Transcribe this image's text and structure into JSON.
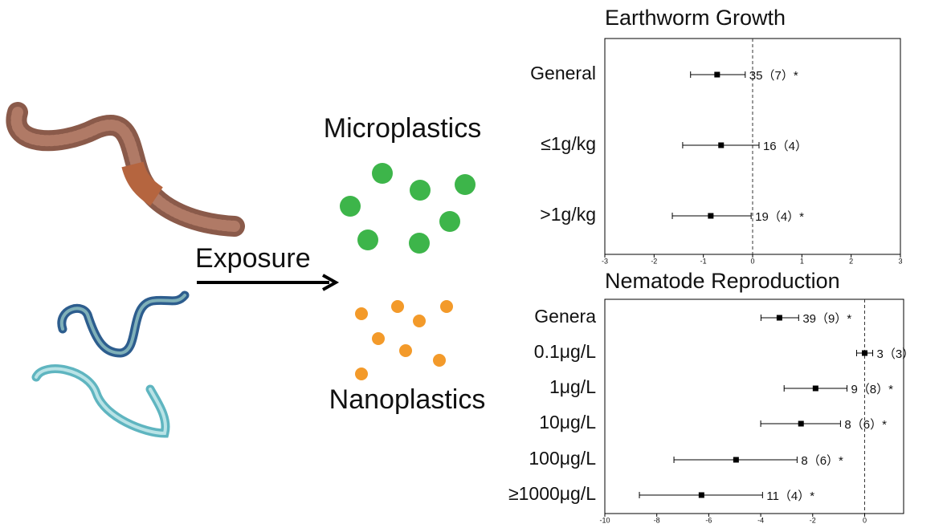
{
  "labels": {
    "exposure": "Exposure",
    "microplastics": "Microplastics",
    "nanoplastics": "Nanoplastics"
  },
  "chart_data": [
    {
      "type": "forest",
      "title": "Earthworm Growth",
      "categories": [
        "General",
        "≤1g/kg",
        ">1g/kg"
      ],
      "values": [
        -0.72,
        -0.64,
        -0.85
      ],
      "lower": [
        -1.26,
        -1.42,
        -1.63
      ],
      "upper": [
        -0.15,
        0.13,
        -0.03
      ],
      "annotations": [
        "35（7）*",
        "16（4）",
        "19（4）*"
      ],
      "xlim": [
        -3,
        3
      ],
      "xticks": [
        -3,
        -2,
        -1,
        0,
        1,
        2,
        3
      ],
      "reference_line": 0,
      "color": "#000000"
    },
    {
      "type": "forest",
      "title": "Nematode Reproduction",
      "categories": [
        "Genera",
        "0.1μg/L",
        "1μg/L",
        "10μg/L",
        "100μg/L",
        "≥1000μg/L"
      ],
      "values": [
        -3.28,
        0.0,
        -1.89,
        -2.45,
        -4.95,
        -6.28
      ],
      "lower": [
        -3.99,
        -0.31,
        -3.1,
        -4.0,
        -7.34,
        -8.67
      ],
      "upper": [
        -2.54,
        0.31,
        -0.68,
        -0.93,
        -2.6,
        -3.93
      ],
      "annotations": [
        "39（9）*",
        "3（3）",
        "9（8）*",
        "8（6）*",
        "8（6）*",
        "11（4）*"
      ],
      "xlim": [
        -10,
        1.5
      ],
      "xticks": [
        -10,
        -8,
        -6,
        -4,
        -2,
        0
      ],
      "reference_line": 0,
      "color": "#000000"
    }
  ]
}
